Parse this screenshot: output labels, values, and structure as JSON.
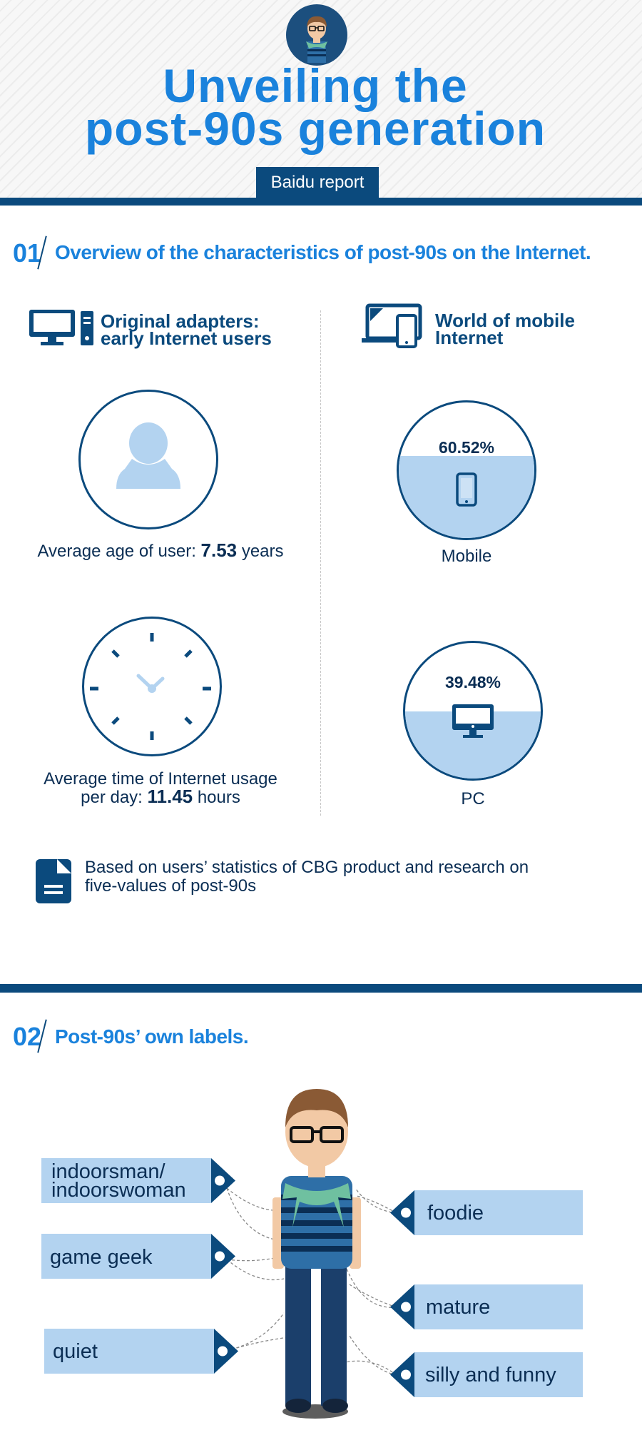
{
  "header": {
    "title_line1": "Unveiling the",
    "title_line2": "post-90s generation",
    "subtitle": "Baidu report"
  },
  "section1": {
    "number": "01",
    "title": "Overview of the characteristics of post-90s on the Internet.",
    "left_heading_line1": "Original adapters:",
    "left_heading_line2": "early Internet users",
    "right_heading_line1": "World of mobile",
    "right_heading_line2": "Internet",
    "age_caption_prefix": "Average age of user:",
    "age_value": "7.53",
    "age_unit": "years",
    "time_caption_line1": "Average time of Internet usage",
    "time_caption_prefix": "per day:",
    "time_value": "11.45",
    "time_unit": "hours",
    "mobile": {
      "percent_label": "60.52%",
      "share": 0.6052,
      "label": "Mobile"
    },
    "pc": {
      "percent_label": "39.48%",
      "share": 0.3948,
      "label": "PC"
    },
    "note_line1": "Based on users’ statistics of CBG product and research on",
    "note_line2": "five-values of post-90s"
  },
  "section2": {
    "number": "02",
    "title": "Post-90s’ own labels.",
    "labels_left": [
      {
        "line1": "indoorsman/",
        "line2": "indoorswoman"
      },
      {
        "line1": "game geek",
        "line2": ""
      },
      {
        "line1": "quiet",
        "line2": ""
      }
    ],
    "labels_right": [
      {
        "line1": "foodie"
      },
      {
        "line1": "mature"
      },
      {
        "line1": "silly and funny"
      }
    ]
  },
  "colors": {
    "accent_blue": "#1a82dc",
    "navy": "#0b4a7d",
    "light_blue": "#b3d3f0",
    "text_dark": "#0b2e54"
  }
}
